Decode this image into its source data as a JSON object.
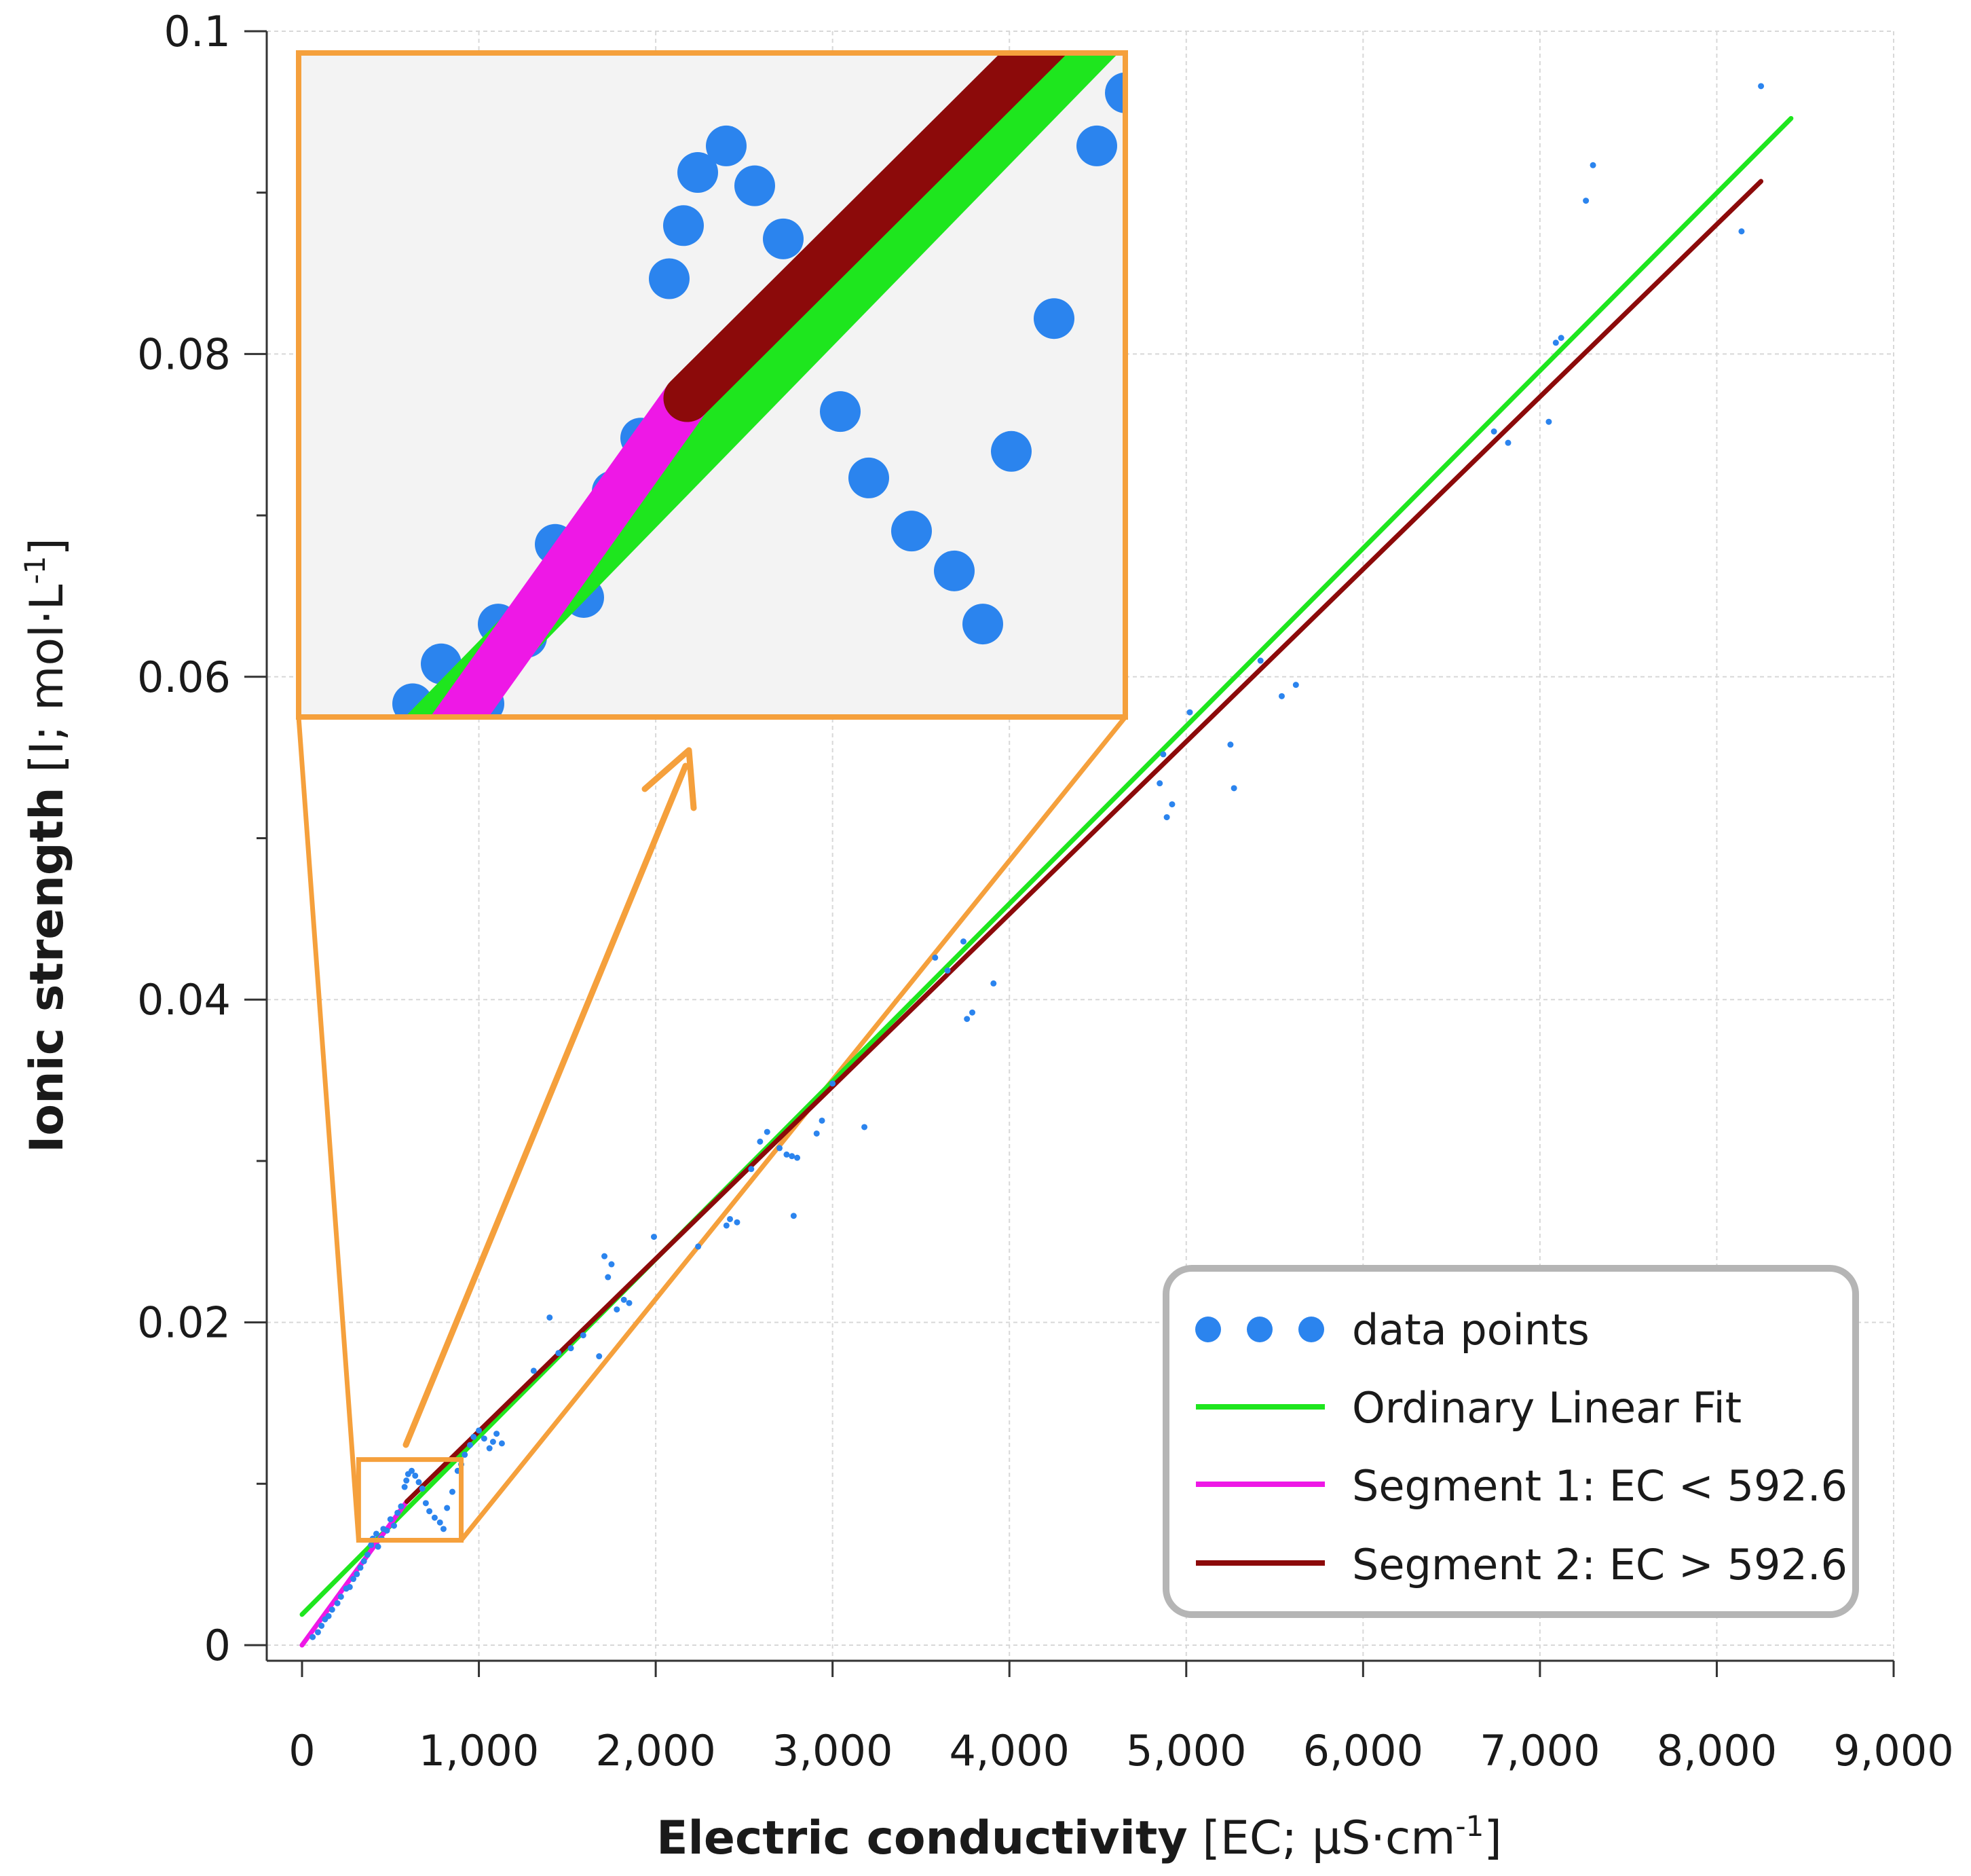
{
  "chart_data": {
    "type": "scatter",
    "title": "",
    "xlabel": {
      "bold": "Electric conductivity",
      "normal": " [EC; µS·cm",
      "sup": "-1",
      "end": "]"
    },
    "ylabel": {
      "bold": "Ionic strength",
      "normal": " [I; mol·L",
      "sup": "-1",
      "end": "]"
    },
    "xlim": [
      0,
      9000
    ],
    "ylim": [
      0,
      0.1
    ],
    "x_ticks": [
      0,
      1000,
      2000,
      3000,
      4000,
      5000,
      6000,
      7000,
      8000,
      9000
    ],
    "x_tick_labels": [
      "0",
      "1,000",
      "2,000",
      "3,000",
      "4,000",
      "5,000",
      "6,000",
      "7,000",
      "8,000",
      "9,000"
    ],
    "y_ticks": [
      0,
      0.02,
      0.04,
      0.06,
      0.08,
      0.1
    ],
    "y_tick_labels": [
      "0",
      "0.02",
      "0.04",
      "0.06",
      "0.08",
      "0.1"
    ],
    "grid": true,
    "legend_position": "bottom-right",
    "colors": {
      "points": "#2b84ee",
      "ols": "#1ee61e",
      "seg1": "#ee18e6",
      "seg2": "#8c0a0a",
      "zoom": "#f5a03c",
      "inset_bg": "#f3f3f3",
      "grid": "#d8d8d8",
      "legend_border": "#b5b5b5"
    },
    "series": [
      {
        "name": "data points",
        "kind": "scatter",
        "points": [
          [
            60,
            0.0005
          ],
          [
            90,
            0.0008
          ],
          [
            110,
            0.0012
          ],
          [
            130,
            0.0016
          ],
          [
            150,
            0.0018
          ],
          [
            170,
            0.0022
          ],
          [
            200,
            0.0026
          ],
          [
            220,
            0.003
          ],
          [
            250,
            0.0035
          ],
          [
            270,
            0.0036
          ],
          [
            290,
            0.0041
          ],
          [
            310,
            0.0044
          ],
          [
            330,
            0.0048
          ],
          [
            350,
            0.0052
          ],
          [
            370,
            0.0056
          ],
          [
            390,
            0.0062
          ],
          [
            400,
            0.0066
          ],
          [
            420,
            0.0069
          ],
          [
            430,
            0.0061
          ],
          [
            450,
            0.0066
          ],
          [
            460,
            0.0072
          ],
          [
            480,
            0.0071
          ],
          [
            500,
            0.0078
          ],
          [
            520,
            0.0074
          ],
          [
            540,
            0.0082
          ],
          [
            560,
            0.0086
          ],
          [
            580,
            0.0098
          ],
          [
            590,
            0.0102
          ],
          [
            600,
            0.0106
          ],
          [
            620,
            0.0108
          ],
          [
            640,
            0.0105
          ],
          [
            660,
            0.0101
          ],
          [
            680,
            0.0097
          ],
          [
            700,
            0.0088
          ],
          [
            720,
            0.0083
          ],
          [
            750,
            0.0079
          ],
          [
            780,
            0.0076
          ],
          [
            800,
            0.0072
          ],
          [
            820,
            0.0085
          ],
          [
            850,
            0.0095
          ],
          [
            880,
            0.0108
          ],
          [
            900,
            0.0112
          ],
          [
            920,
            0.0118
          ],
          [
            950,
            0.0124
          ],
          [
            970,
            0.0129
          ],
          [
            1000,
            0.0133
          ],
          [
            1030,
            0.0128
          ],
          [
            1060,
            0.0122
          ],
          [
            1080,
            0.0126
          ],
          [
            1100,
            0.0131
          ],
          [
            1130,
            0.0125
          ],
          [
            1310,
            0.017
          ],
          [
            1400,
            0.0203
          ],
          [
            1450,
            0.0181
          ],
          [
            1520,
            0.0184
          ],
          [
            1590,
            0.0192
          ],
          [
            1680,
            0.0179
          ],
          [
            1710,
            0.0241
          ],
          [
            1730,
            0.0228
          ],
          [
            1750,
            0.0236
          ],
          [
            1780,
            0.0208
          ],
          [
            1820,
            0.0214
          ],
          [
            1850,
            0.0212
          ],
          [
            1990,
            0.0253
          ],
          [
            2240,
            0.0247
          ],
          [
            2400,
            0.026
          ],
          [
            2420,
            0.0264
          ],
          [
            2460,
            0.0262
          ],
          [
            2540,
            0.0295
          ],
          [
            2590,
            0.0312
          ],
          [
            2630,
            0.0318
          ],
          [
            2700,
            0.0308
          ],
          [
            2740,
            0.0304
          ],
          [
            2770,
            0.0303
          ],
          [
            2780,
            0.0266
          ],
          [
            2800,
            0.0302
          ],
          [
            2910,
            0.0317
          ],
          [
            2940,
            0.0325
          ],
          [
            3000,
            0.0348
          ],
          [
            3180,
            0.0321
          ],
          [
            3580,
            0.0426
          ],
          [
            3650,
            0.0418
          ],
          [
            3740,
            0.0436
          ],
          [
            3760,
            0.0388
          ],
          [
            3790,
            0.0392
          ],
          [
            3910,
            0.041
          ],
          [
            4850,
            0.0534
          ],
          [
            4870,
            0.0552
          ],
          [
            4890,
            0.0513
          ],
          [
            4920,
            0.0521
          ],
          [
            5020,
            0.0578
          ],
          [
            5250,
            0.0558
          ],
          [
            5270,
            0.0531
          ],
          [
            5420,
            0.061
          ],
          [
            5540,
            0.0588
          ],
          [
            5620,
            0.0595
          ],
          [
            6740,
            0.0752
          ],
          [
            6820,
            0.0745
          ],
          [
            7050,
            0.0758
          ],
          [
            7090,
            0.0807
          ],
          [
            7120,
            0.081
          ],
          [
            7260,
            0.0895
          ],
          [
            7300,
            0.0917
          ],
          [
            8140,
            0.0876
          ],
          [
            8250,
            0.0966
          ]
        ]
      },
      {
        "name": "Ordinary Linear Fit",
        "kind": "line",
        "points": [
          [
            0,
            0.0019
          ],
          [
            8420,
            0.0946
          ]
        ]
      },
      {
        "name": "Segment 1: EC < 592.6",
        "kind": "line",
        "points": [
          [
            0,
            0
          ],
          [
            592.6,
            0.0089
          ]
        ]
      },
      {
        "name": "Segment 2: EC > 592.6",
        "kind": "line",
        "points": [
          [
            592.6,
            0.0089
          ],
          [
            8250,
            0.0907
          ]
        ]
      }
    ],
    "zoom_region": {
      "x_range": [
        320,
        900
      ],
      "y_range": [
        0.0065,
        0.0115
      ]
    },
    "legend": {
      "entries": [
        {
          "label": "data points",
          "marker": "dots"
        },
        {
          "label": "Ordinary Linear Fit",
          "marker": "line-ols"
        },
        {
          "label": "Segment 1: EC < 592.6",
          "marker": "line-seg1"
        },
        {
          "label": "Segment 2: EC > 592.6",
          "marker": "line-seg2"
        }
      ]
    }
  }
}
